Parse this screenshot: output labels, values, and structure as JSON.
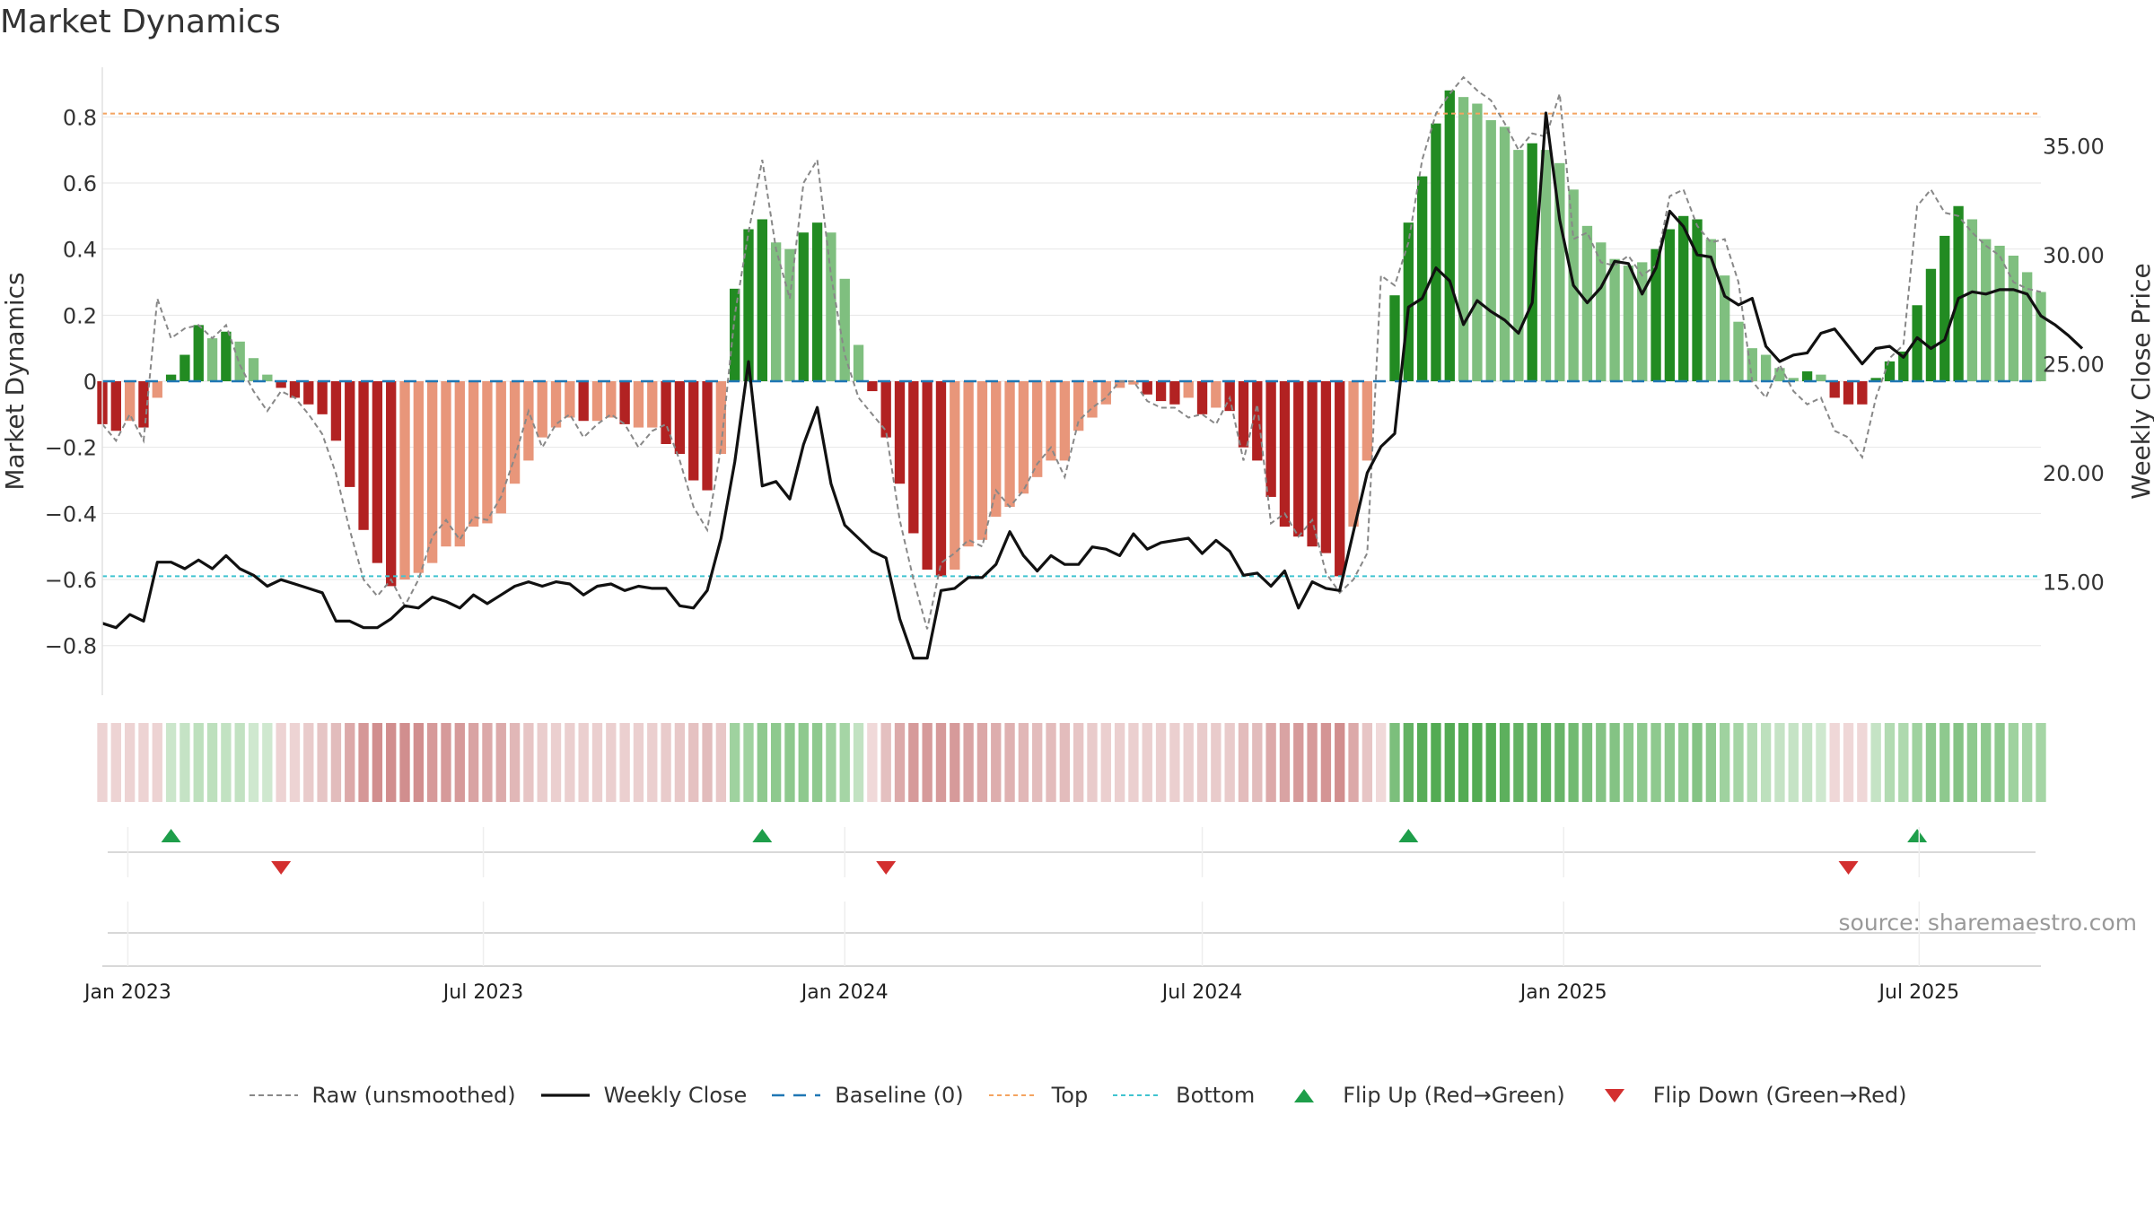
{
  "title": "Market Dynamics",
  "source": "source: sharemaestro.com",
  "colors": {
    "strong_green": "#228b22",
    "light_green": "#7fbf7f",
    "strong_red": "#b22222",
    "light_red": "#e8967a",
    "raw": "#888888",
    "close": "#111111",
    "baseline": "#1f77b4",
    "top": "#f4a460",
    "bottom": "#40c4d0",
    "flip_up": "#1e9e4a",
    "flip_down": "#d32f2f"
  },
  "chart_data": {
    "type": "bar",
    "title": "Market Dynamics",
    "ylabel": "Market Dynamics",
    "y2label": "Weekly Close Price",
    "ylim": [
      -0.95,
      0.95
    ],
    "y2lim": [
      9.8,
      38.6
    ],
    "yticks": [
      -0.8,
      -0.6,
      -0.4,
      -0.2,
      0,
      0.2,
      0.4,
      0.6,
      0.8
    ],
    "ytick_labels": [
      "−0.8",
      "−0.6",
      "−0.4",
      "−0.2",
      "0",
      "0.2",
      "0.4",
      "0.6",
      "0.8"
    ],
    "y2ticks": [
      15,
      20,
      25,
      30,
      35
    ],
    "y2tick_labels": [
      "15.00",
      "20.00",
      "25.00",
      "30.00",
      "35.00"
    ],
    "x_start": "2022-12-19",
    "x_end": "2025-09-01",
    "xticks": [
      {
        "date": "2023-01-01",
        "label": "Jan 2023"
      },
      {
        "date": "2023-07-01",
        "label": "Jul 2023"
      },
      {
        "date": "2024-01-01",
        "label": "Jan 2024"
      },
      {
        "date": "2024-07-01",
        "label": "Jul 2024"
      },
      {
        "date": "2025-01-01",
        "label": "Jan 2025"
      },
      {
        "date": "2025-07-01",
        "label": "Jul 2025"
      }
    ],
    "first_week": "2022-12-19",
    "bars": [
      -0.13,
      -0.15,
      -0.12,
      -0.14,
      -0.05,
      0.02,
      0.08,
      0.17,
      0.13,
      0.15,
      0.12,
      0.07,
      0.02,
      -0.02,
      -0.05,
      -0.07,
      -0.1,
      -0.18,
      -0.32,
      -0.45,
      -0.55,
      -0.62,
      -0.6,
      -0.58,
      -0.55,
      -0.5,
      -0.5,
      -0.44,
      -0.43,
      -0.4,
      -0.31,
      -0.24,
      -0.17,
      -0.14,
      -0.11,
      -0.12,
      -0.12,
      -0.11,
      -0.13,
      -0.14,
      -0.14,
      -0.19,
      -0.22,
      -0.3,
      -0.33,
      -0.22,
      0.28,
      0.46,
      0.49,
      0.42,
      0.4,
      0.45,
      0.48,
      0.45,
      0.31,
      0.11,
      -0.03,
      -0.17,
      -0.31,
      -0.46,
      -0.57,
      -0.59,
      -0.57,
      -0.5,
      -0.48,
      -0.41,
      -0.38,
      -0.34,
      -0.29,
      -0.24,
      -0.24,
      -0.15,
      -0.11,
      -0.07,
      -0.02,
      -0.01,
      -0.04,
      -0.06,
      -0.07,
      -0.05,
      -0.1,
      -0.08,
      -0.09,
      -0.2,
      -0.24,
      -0.35,
      -0.44,
      -0.47,
      -0.5,
      -0.52,
      -0.59,
      -0.44,
      -0.24,
      0.0,
      0.26,
      0.48,
      0.62,
      0.78,
      0.88,
      0.86,
      0.84,
      0.79,
      0.77,
      0.7,
      0.72,
      0.7,
      0.66,
      0.58,
      0.47,
      0.42,
      0.37,
      0.35,
      0.36,
      0.4,
      0.46,
      0.5,
      0.49,
      0.43,
      0.32,
      0.18,
      0.1,
      0.08,
      0.04,
      0.01,
      0.03,
      0.02,
      -0.05,
      -0.07,
      -0.07,
      0.01,
      0.06,
      0.09,
      0.23,
      0.34,
      0.44,
      0.53,
      0.49,
      0.43,
      0.41,
      0.38,
      0.33,
      0.27
    ],
    "bar_strength": [
      "s",
      "s",
      "l",
      "s",
      "l",
      "s",
      "s",
      "s",
      "l",
      "s",
      "l",
      "l",
      "l",
      "s",
      "s",
      "s",
      "s",
      "s",
      "s",
      "s",
      "s",
      "s",
      "l",
      "l",
      "l",
      "l",
      "l",
      "l",
      "l",
      "l",
      "l",
      "l",
      "l",
      "l",
      "l",
      "s",
      "l",
      "l",
      "s",
      "l",
      "l",
      "s",
      "s",
      "s",
      "s",
      "l",
      "s",
      "s",
      "s",
      "l",
      "l",
      "s",
      "s",
      "l",
      "l",
      "l",
      "s",
      "s",
      "s",
      "s",
      "s",
      "s",
      "l",
      "l",
      "l",
      "l",
      "l",
      "l",
      "l",
      "l",
      "l",
      "l",
      "l",
      "l",
      "l",
      "l",
      "s",
      "s",
      "s",
      "l",
      "s",
      "l",
      "s",
      "s",
      "s",
      "s",
      "s",
      "s",
      "s",
      "s",
      "s",
      "l",
      "l",
      "l",
      "s",
      "s",
      "s",
      "s",
      "s",
      "l",
      "l",
      "l",
      "l",
      "l",
      "s",
      "l",
      "l",
      "l",
      "l",
      "l",
      "l",
      "l",
      "l",
      "s",
      "s",
      "s",
      "s",
      "l",
      "l",
      "l",
      "l",
      "l",
      "l",
      "l",
      "s",
      "l",
      "s",
      "s",
      "s",
      "s",
      "s",
      "s",
      "s",
      "s",
      "s",
      "s",
      "l",
      "l",
      "l",
      "l",
      "l",
      "l"
    ],
    "close": [
      13.1,
      12.9,
      13.5,
      13.2,
      15.9,
      15.9,
      15.6,
      16.0,
      15.6,
      16.2,
      15.6,
      15.3,
      14.8,
      15.1,
      14.9,
      14.7,
      14.5,
      13.2,
      13.2,
      12.9,
      12.9,
      13.3,
      13.9,
      13.8,
      14.3,
      14.1,
      13.8,
      14.4,
      14.0,
      14.4,
      14.8,
      15.0,
      14.8,
      15.0,
      14.9,
      14.4,
      14.8,
      14.9,
      14.6,
      14.8,
      14.7,
      14.7,
      13.9,
      13.8,
      14.6,
      17.0,
      20.5,
      25.1,
      19.4,
      19.6,
      18.8,
      21.3,
      23.0,
      19.5,
      17.6,
      17.0,
      16.4,
      16.1,
      13.3,
      11.5,
      11.5,
      14.6,
      14.7,
      15.2,
      15.2,
      15.8,
      17.3,
      16.2,
      15.5,
      16.2,
      15.8,
      15.8,
      16.6,
      16.5,
      16.2,
      17.2,
      16.5,
      16.8,
      16.9,
      17.0,
      16.3,
      16.9,
      16.4,
      15.3,
      15.4,
      14.8,
      15.5,
      13.8,
      15.0,
      14.7,
      14.6,
      17.3,
      20.0,
      21.2,
      21.8,
      27.6,
      28.0,
      29.4,
      28.8,
      26.8,
      27.9,
      27.4,
      27.0,
      26.4,
      27.8,
      36.5,
      31.6,
      28.6,
      27.8,
      28.5,
      29.7,
      29.6,
      28.2,
      29.4,
      32.0,
      31.3,
      30.0,
      29.9,
      28.1,
      27.7,
      28.0,
      25.8,
      25.1,
      25.4,
      25.5,
      26.4,
      26.6,
      25.8,
      25.0,
      25.7,
      25.8,
      25.3,
      26.2,
      25.7,
      26.1,
      28.0,
      28.3,
      28.2,
      28.4,
      28.4,
      28.2,
      27.2,
      26.8,
      26.3,
      25.7
    ],
    "raw": [
      -0.13,
      -0.18,
      -0.1,
      -0.18,
      0.25,
      0.13,
      0.16,
      0.17,
      0.13,
      0.17,
      0.05,
      -0.03,
      -0.09,
      -0.03,
      -0.05,
      -0.1,
      -0.16,
      -0.28,
      -0.45,
      -0.6,
      -0.65,
      -0.6,
      -0.68,
      -0.6,
      -0.47,
      -0.42,
      -0.48,
      -0.41,
      -0.42,
      -0.35,
      -0.23,
      -0.09,
      -0.2,
      -0.13,
      -0.1,
      -0.17,
      -0.13,
      -0.1,
      -0.13,
      -0.2,
      -0.15,
      -0.13,
      -0.24,
      -0.38,
      -0.45,
      -0.2,
      0.2,
      0.45,
      0.67,
      0.4,
      0.25,
      0.6,
      0.67,
      0.32,
      0.08,
      -0.05,
      -0.1,
      -0.15,
      -0.42,
      -0.6,
      -0.75,
      -0.55,
      -0.52,
      -0.48,
      -0.5,
      -0.33,
      -0.38,
      -0.33,
      -0.25,
      -0.2,
      -0.29,
      -0.12,
      -0.08,
      -0.05,
      0.0,
      0.0,
      -0.06,
      -0.08,
      -0.08,
      -0.11,
      -0.1,
      -0.13,
      -0.05,
      -0.24,
      -0.07,
      -0.43,
      -0.4,
      -0.47,
      -0.42,
      -0.58,
      -0.64,
      -0.6,
      -0.52,
      0.32,
      0.29,
      0.42,
      0.67,
      0.81,
      0.87,
      0.92,
      0.88,
      0.85,
      0.78,
      0.7,
      0.75,
      0.74,
      0.87,
      0.43,
      0.45,
      0.36,
      0.35,
      0.38,
      0.32,
      0.35,
      0.56,
      0.58,
      0.47,
      0.42,
      0.43,
      0.3,
      0.0,
      -0.05,
      0.05,
      -0.03,
      -0.07,
      -0.05,
      -0.15,
      -0.17,
      -0.23,
      -0.05,
      0.07,
      0.11,
      0.53,
      0.58,
      0.51,
      0.5,
      0.45,
      0.41,
      0.38,
      0.3,
      0.28,
      0.27
    ],
    "top": 0.81,
    "bottom": -0.59,
    "baseline": 0,
    "flip_up_weeks": [
      5,
      48,
      95,
      132
    ],
    "flip_down_weeks": [
      13,
      57,
      127
    ],
    "strip_colors": [
      "#edd3d3",
      "#edd3d3",
      "#edd3d3",
      "#edd3d3",
      "#edd3d3",
      "#cbe6cb",
      "#c5e3c5",
      "#bde0bd",
      "#bde0bd",
      "#c2e2c2",
      "#c2e2c2",
      "#cfe8cf",
      "#cfe8cf",
      "#edd3d3",
      "#edd3d3",
      "#e9cbcb",
      "#e6c5c5",
      "#e2bcbc",
      "#dca9a9",
      "#d59797",
      "#d18e8e",
      "#d18e8e",
      "#d18e8e",
      "#d18e8e",
      "#d69a9a",
      "#d69a9a",
      "#d69a9a",
      "#d9a3a3",
      "#dca9a9",
      "#dcaaaa",
      "#e1b7b7",
      "#e7c5c5",
      "#eacdcd",
      "#ebcfcf",
      "#ebcfcf",
      "#ebcfcf",
      "#ebcfcf",
      "#ebcfcf",
      "#ebcfcf",
      "#ebcfcf",
      "#ebcfcf",
      "#e9cbcb",
      "#e8c8c8",
      "#e5c1c1",
      "#e2bcbc",
      "#e8c7c7",
      "#9fd29f",
      "#9fd29f",
      "#8ec98e",
      "#8ec98e",
      "#8ec98e",
      "#8ec98e",
      "#8ec98e",
      "#9fd29f",
      "#a5d5a5",
      "#c2e2c2",
      "#f0d9d9",
      "#e4c0c0",
      "#dcaaaa",
      "#d69a9a",
      "#d69a9a",
      "#d69a9a",
      "#d69a9a",
      "#d9a3a3",
      "#dba7a7",
      "#ddadad",
      "#dfb1b1",
      "#e1b7b7",
      "#e3bcbc",
      "#e3bcbc",
      "#e3bcbc",
      "#e7c5c5",
      "#e9cbcb",
      "#ebcfcf",
      "#ebcfcf",
      "#ebcfcf",
      "#ebcfcf",
      "#ebcfcf",
      "#ebcfcf",
      "#ebcfcf",
      "#e9cbcb",
      "#e9cbcb",
      "#e9cbcb",
      "#e3bcbc",
      "#e2bcbc",
      "#dca9a9",
      "#d9a3a3",
      "#d69a9a",
      "#d69a9a",
      "#d49494",
      "#d18e8e",
      "#dca9a9",
      "#e7c5c5",
      "#f0d9d9",
      "#7cbf7c",
      "#62b262",
      "#57ad57",
      "#53ab53",
      "#53ab53",
      "#53ab53",
      "#53ab53",
      "#53ab53",
      "#5db05d",
      "#62b262",
      "#62b262",
      "#62b262",
      "#68b568",
      "#72ba72",
      "#7cbf7c",
      "#84c384",
      "#84c384",
      "#8ec98e",
      "#8ec98e",
      "#8ec98e",
      "#8ec98e",
      "#8ec98e",
      "#84c384",
      "#8ec98e",
      "#9fd29f",
      "#a5d5a5",
      "#b2dbb2",
      "#bde0bd",
      "#c5e3c5",
      "#c5e3c5",
      "#c5e3c5",
      "#cfe8cf",
      "#efd7d7",
      "#efd7d7",
      "#efd7d7",
      "#c5e3c5",
      "#b2dbb2",
      "#aed9ae",
      "#9fd29f",
      "#8ec98e",
      "#8ec98e",
      "#84c384",
      "#8ec98e",
      "#8ec98e",
      "#8ec98e",
      "#9fd29f",
      "#a5d5a5",
      "#a5d5a5"
    ]
  },
  "legend": [
    {
      "key": "raw",
      "label": "Raw (unsmoothed)"
    },
    {
      "key": "close",
      "label": "Weekly Close"
    },
    {
      "key": "baseline",
      "label": "Baseline (0)"
    },
    {
      "key": "top",
      "label": "Top"
    },
    {
      "key": "bottom",
      "label": "Bottom"
    },
    {
      "key": "flip_up",
      "label": "Flip Up (Red→Green)"
    },
    {
      "key": "flip_down",
      "label": "Flip Down (Green→Red)"
    }
  ]
}
